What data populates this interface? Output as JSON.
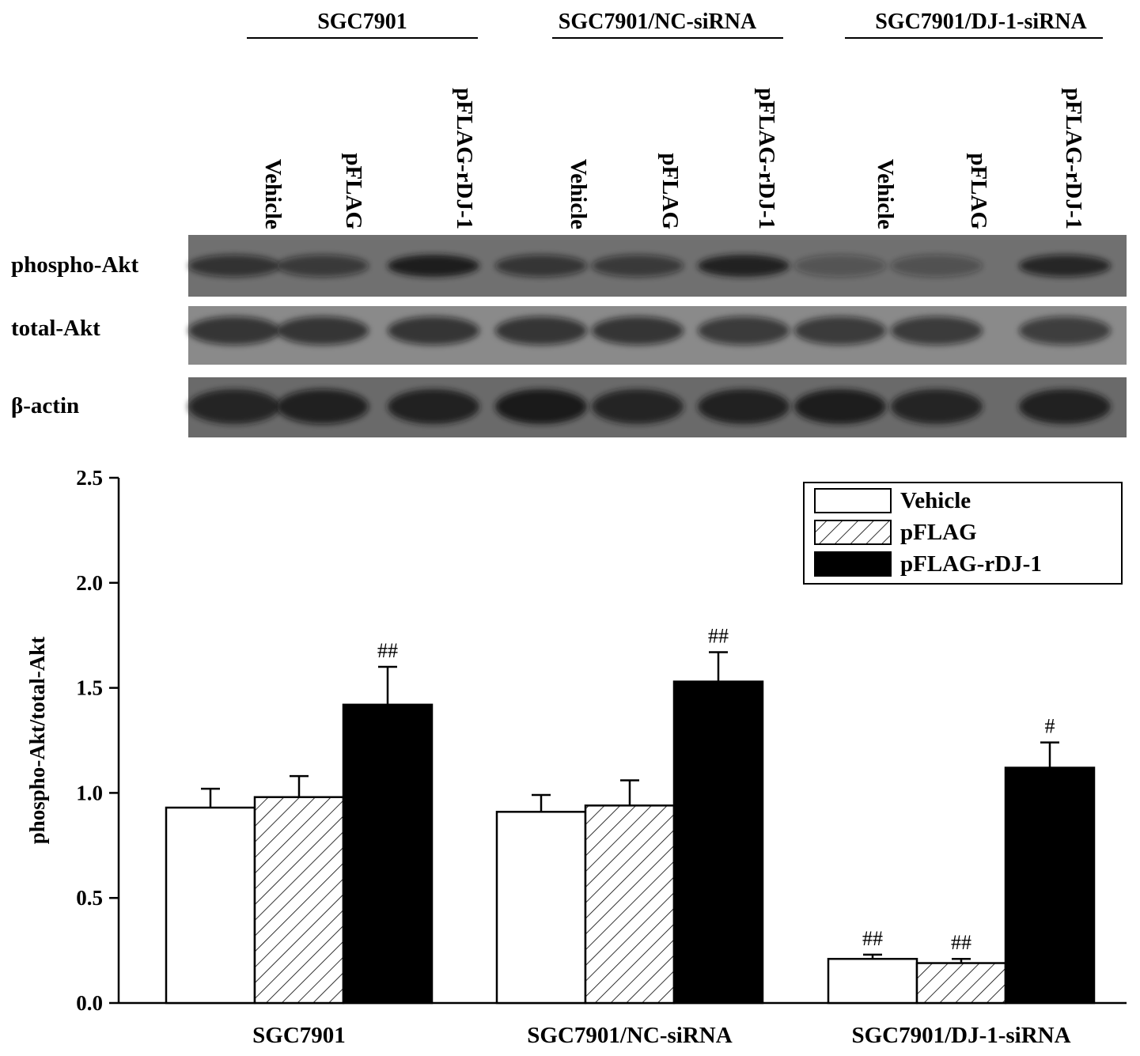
{
  "blot": {
    "groups": [
      "SGC7901",
      "SGC7901/NC-siRNA",
      "SGC7901/DJ-1-siRNA"
    ],
    "lane_labels": [
      "Vehicle",
      "pFLAG",
      "pFLAG-rDJ-1",
      "Vehicle",
      "pFLAG",
      "pFLAG-rDJ-1",
      "Vehicle",
      "pFLAG",
      "pFLAG-rDJ-1"
    ],
    "rows": [
      {
        "label": "phospho-Akt",
        "intensity": [
          0.55,
          0.45,
          0.9,
          0.5,
          0.45,
          0.85,
          0.1,
          0.15,
          0.7
        ]
      },
      {
        "label": "total-Akt",
        "intensity": [
          0.6,
          0.6,
          0.6,
          0.6,
          0.6,
          0.55,
          0.55,
          0.55,
          0.5
        ]
      },
      {
        "label": "β-actin",
        "intensity": [
          0.8,
          0.75,
          0.85,
          0.95,
          0.8,
          0.85,
          0.9,
          0.8,
          0.85
        ]
      }
    ],
    "colors": {
      "membrane": "#6e6e6e",
      "band": "#141414"
    }
  },
  "chart_data": {
    "type": "bar",
    "categories": [
      "SGC7901",
      "SGC7901/NC-siRNA",
      "SGC7901/DJ-1-siRNA"
    ],
    "series": [
      {
        "name": "Vehicle",
        "values": [
          0.93,
          0.91,
          0.21
        ],
        "errors": [
          0.09,
          0.08,
          0.02
        ],
        "annotations": [
          "",
          "",
          "##"
        ],
        "fill": "white"
      },
      {
        "name": "pFLAG",
        "values": [
          0.98,
          0.94,
          0.19
        ],
        "errors": [
          0.1,
          0.12,
          0.02
        ],
        "annotations": [
          "",
          "",
          "##"
        ],
        "fill": "hatched"
      },
      {
        "name": "pFLAG-rDJ-1",
        "values": [
          1.42,
          1.53,
          1.12
        ],
        "errors": [
          0.18,
          0.14,
          0.12
        ],
        "annotations": [
          "##",
          "##",
          "#"
        ],
        "fill": "black"
      }
    ],
    "ylabel": "phospho-Akt/total-Akt",
    "xlabel": "",
    "ylim": [
      0,
      2.5
    ],
    "yticks": [
      "0.0",
      "0.5",
      "1.0",
      "1.5",
      "2.0",
      "2.5"
    ],
    "legend": "top-right",
    "grid": false
  }
}
